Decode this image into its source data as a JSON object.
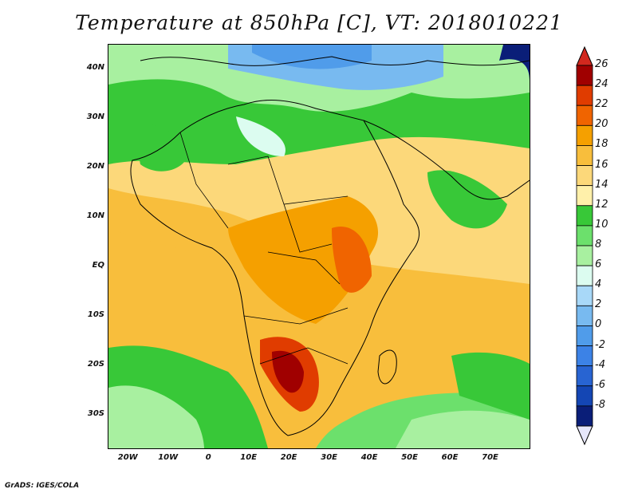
{
  "title": "Temperature at 850hPa [C], VT: 2018010221",
  "footer": "GrADS: IGES/COLA",
  "map": {
    "lon_range": [
      -25,
      80
    ],
    "lat_range": [
      -37,
      45
    ],
    "lat_labels": [
      "40N",
      "30N",
      "20N",
      "10N",
      "EQ",
      "10S",
      "20S",
      "30S"
    ],
    "lat_values": [
      40,
      30,
      20,
      10,
      0,
      -10,
      -20,
      -30
    ],
    "lon_labels": [
      "20W",
      "10W",
      "0",
      "10E",
      "20E",
      "30E",
      "40E",
      "50E",
      "60E",
      "70E"
    ],
    "lon_values": [
      -20,
      -10,
      0,
      10,
      20,
      30,
      40,
      50,
      60,
      70
    ]
  },
  "colorbar": {
    "labels": [
      "26",
      "24",
      "22",
      "20",
      "18",
      "16",
      "14",
      "12",
      "10",
      "8",
      "6",
      "4",
      "2",
      "0",
      "-2",
      "-4",
      "-6",
      "-8"
    ],
    "colors": [
      "#a00000",
      "#e03c00",
      "#f06400",
      "#f5a000",
      "#f8be3c",
      "#fcd87a",
      "#fff0aa",
      "#38c838",
      "#6ce06c",
      "#a8f0a0",
      "#dcfcf0",
      "#a8d8f8",
      "#78baf0",
      "#509cea",
      "#3c82e6",
      "#2864d2",
      "#1446b4",
      "#0a1e78"
    ],
    "over_color": "#d2281e",
    "under_color": "#e6e6fa"
  }
}
